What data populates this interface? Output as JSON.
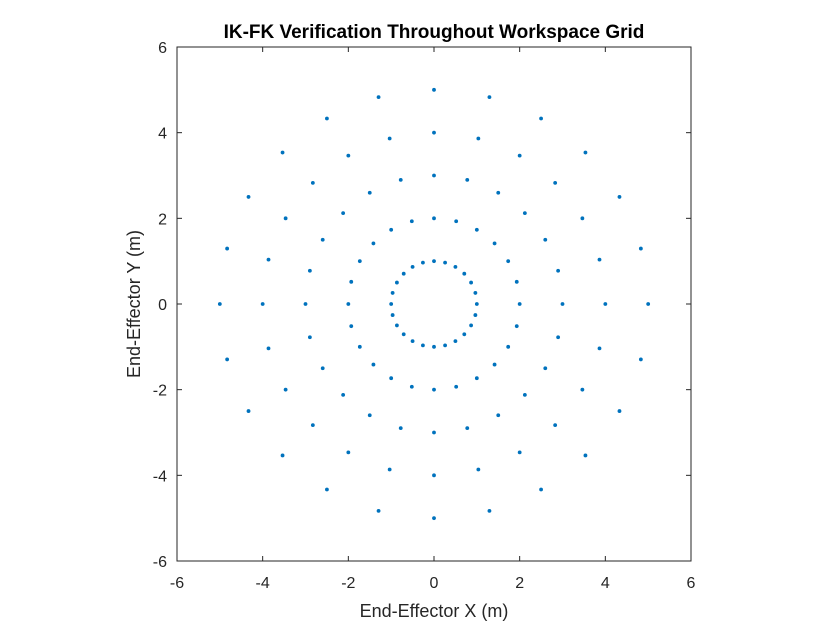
{
  "chart_data": {
    "type": "scatter",
    "title": "IK-FK Verification Throughout Workspace Grid",
    "xlabel": "End-Effector X (m)",
    "ylabel": "End-Effector Y (m)",
    "xlim": [
      -6,
      6
    ],
    "ylim": [
      -6,
      6
    ],
    "xticks": [
      "-6",
      "-4",
      "-2",
      "0",
      "2",
      "4",
      "6"
    ],
    "yticks": [
      "-6",
      "-4",
      "-2",
      "0",
      "2",
      "4",
      "6"
    ],
    "grid": false,
    "legend": "none",
    "marker_color": "#0072BD",
    "rings": [
      {
        "radius": 1,
        "points": 24
      },
      {
        "radius": 2,
        "points": 24
      },
      {
        "radius": 3,
        "points": 24
      },
      {
        "radius": 4,
        "points": 24
      },
      {
        "radius": 5,
        "points": 24
      }
    ]
  }
}
